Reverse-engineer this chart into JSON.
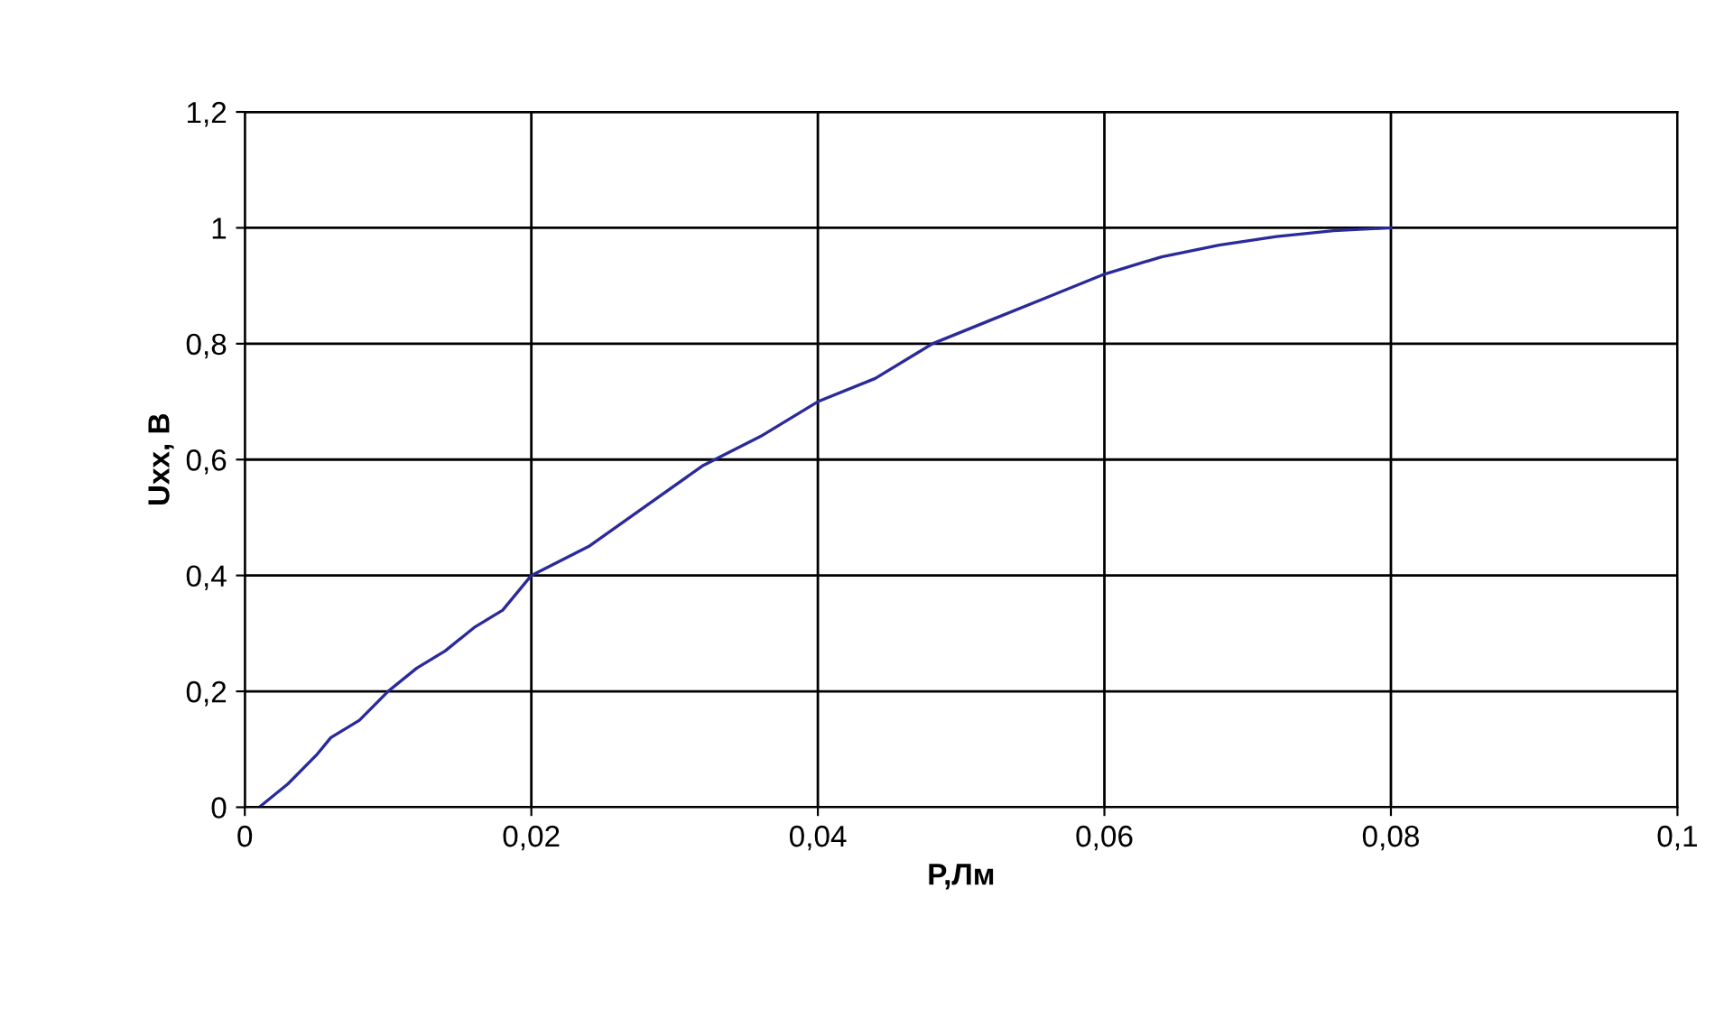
{
  "chart_data": {
    "type": "line",
    "xlabel": "P,Лм",
    "ylabel": "Uxx, В",
    "x": [
      0.001,
      0.003,
      0.005,
      0.006,
      0.008,
      0.01,
      0.012,
      0.014,
      0.016,
      0.018,
      0.02,
      0.024,
      0.028,
      0.032,
      0.036,
      0.04,
      0.044,
      0.048,
      0.052,
      0.056,
      0.06,
      0.064,
      0.068,
      0.072,
      0.076,
      0.08
    ],
    "series": [
      {
        "color": "#2a2a9a",
        "values": [
          0,
          0.04,
          0.09,
          0.12,
          0.15,
          0.2,
          0.24,
          0.27,
          0.31,
          0.34,
          0.4,
          0.45,
          0.52,
          0.59,
          0.64,
          0.7,
          0.74,
          0.8,
          0.84,
          0.88,
          0.92,
          0.95,
          0.97,
          0.985,
          0.995,
          1.0
        ]
      }
    ],
    "xlim": [
      0,
      0.1
    ],
    "ylim": [
      0,
      1.2
    ],
    "xticks": [
      0,
      {
        "value": 0.02,
        "label": "0,02"
      },
      {
        "value": 0.04,
        "label": "0,04"
      },
      {
        "value": 0.06,
        "label": "0,06"
      },
      {
        "value": 0.08,
        "label": "0,08"
      },
      {
        "value": 0.1,
        "label": "0,1"
      }
    ],
    "yticks": [
      0,
      {
        "value": 0.2,
        "label": "0,2"
      },
      {
        "value": 0.4,
        "label": "0,4"
      },
      {
        "value": 0.6,
        "label": "0,6"
      },
      {
        "value": 0.8,
        "label": "0,8"
      },
      1,
      {
        "value": 1.2,
        "label": "1,2"
      }
    ],
    "grid": true,
    "legend": false,
    "marker": "none",
    "line_style": "solid"
  }
}
